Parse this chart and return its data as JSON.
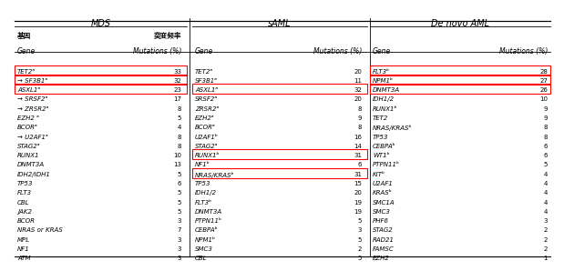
{
  "title_mds": "MDS",
  "title_saml": "sAML",
  "title_dnaml": "De novo AML",
  "header_gene_zh": "基因",
  "header_gene_en": "Gene",
  "header_mut_zh": "突变频率",
  "header_mut_en": "Mutations (%)",
  "mds_data": [
    [
      "TET2ᵃ",
      33,
      true
    ],
    [
      "→ SF3B1ᵃ",
      32,
      true
    ],
    [
      "ASXL1ᵃ",
      23,
      true
    ],
    [
      "→ SRSF2ᵃ",
      17,
      false
    ],
    [
      "→ ZRSR2ᵃ",
      8,
      false
    ],
    [
      "EZH2 ᵃ",
      5,
      false
    ],
    [
      "BCORᵃ",
      4,
      false
    ],
    [
      "→ U2AF1ᵃ",
      8,
      false
    ],
    [
      "STAG2ᵃ",
      8,
      false
    ],
    [
      "RUNX1",
      10,
      false
    ],
    [
      "DNMT3A",
      13,
      false
    ],
    [
      "IDH2/IDH1",
      5,
      false
    ],
    [
      "TP53",
      6,
      false
    ],
    [
      "FLT3",
      5,
      false
    ],
    [
      "CBL",
      5,
      false
    ],
    [
      "JAK2",
      5,
      false
    ],
    [
      "BCOR",
      3,
      false
    ],
    [
      "NRAS or KRAS",
      7,
      false
    ],
    [
      "MPL",
      3,
      false
    ],
    [
      "NF1",
      3,
      false
    ],
    [
      "ATM",
      3,
      false
    ]
  ],
  "saml_data": [
    [
      "TET2ᵃ",
      20,
      false
    ],
    [
      "SF3B1ᵃ",
      11,
      false
    ],
    [
      "ASXL1ᵃ",
      32,
      true
    ],
    [
      "SRSF2ᵃ",
      20,
      false
    ],
    [
      "ZRSR2ᵃ",
      8,
      false
    ],
    [
      "EZH2ᵃ",
      9,
      false
    ],
    [
      "BCORᵃ",
      8,
      false
    ],
    [
      "U2AF1ᵇ",
      16,
      false
    ],
    [
      "STAG2ᵃ",
      14,
      false
    ],
    [
      "RUNX1ᵇ",
      31,
      true
    ],
    [
      "NF1ᵇ",
      6,
      false
    ],
    [
      "NRAS/KRASᵇ",
      31,
      true
    ],
    [
      "TP53",
      15,
      false
    ],
    [
      "IDH1/2",
      20,
      false
    ],
    [
      "FLT3ᵇ",
      19,
      false
    ],
    [
      "DNMT3A",
      19,
      false
    ],
    [
      "PTPN11ᵇ",
      5,
      false
    ],
    [
      "CEBPAᵇ",
      3,
      false
    ],
    [
      "NPM1ᵇ",
      5,
      false
    ],
    [
      "SMC3",
      2,
      false
    ],
    [
      "CBL",
      5,
      false
    ]
  ],
  "dnaml_data": [
    [
      "FLT3ᵇ",
      28,
      true
    ],
    [
      "NPM1ᵇ",
      27,
      true
    ],
    [
      "DNMT3A",
      26,
      true
    ],
    [
      "IDH1/2",
      10,
      false
    ],
    [
      "RUNX1ᵇ",
      9,
      false
    ],
    [
      "TET2",
      9,
      false
    ],
    [
      "NRAS/KRASᵇ",
      8,
      false
    ],
    [
      "TP53",
      8,
      false
    ],
    [
      "CEBPAᵇ",
      6,
      false
    ],
    [
      "WT1ᵇ",
      6,
      false
    ],
    [
      "PTPN11ᵇ",
      5,
      false
    ],
    [
      "KITᵇ",
      4,
      false
    ],
    [
      "U2AF1",
      4,
      false
    ],
    [
      "KRASᵇ",
      4,
      false
    ],
    [
      "SMC1A",
      4,
      false
    ],
    [
      "SMC3",
      4,
      false
    ],
    [
      "PHF6",
      3,
      false
    ],
    [
      "STAG2",
      2,
      false
    ],
    [
      "RAD21",
      2,
      false
    ],
    [
      "FAMSC",
      2,
      false
    ],
    [
      "EZH2",
      1,
      false
    ]
  ],
  "highlight_color": "#ff0000",
  "bg_color": "#ffffff",
  "text_color": "#000000",
  "header_line_color": "#000000"
}
